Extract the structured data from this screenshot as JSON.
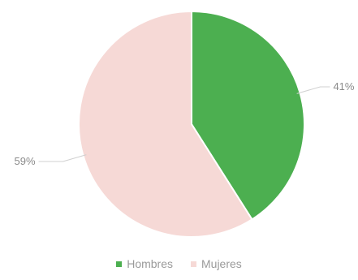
{
  "chart_data": {
    "type": "pie",
    "title": "",
    "categories": [
      "Hombres",
      "Mujeres"
    ],
    "values": [
      41,
      59
    ],
    "data_labels": [
      "41%",
      "59%"
    ],
    "colors": [
      "#4caf50",
      "#f6d9d6"
    ],
    "legend_position": "bottom",
    "start_angle_deg": 0,
    "direction": "clockwise",
    "slice_border_color": "#ffffff"
  },
  "legend": {
    "items": [
      {
        "label": "Hombres",
        "color": "#4caf50"
      },
      {
        "label": "Mujeres",
        "color": "#f6d9d6"
      }
    ]
  }
}
